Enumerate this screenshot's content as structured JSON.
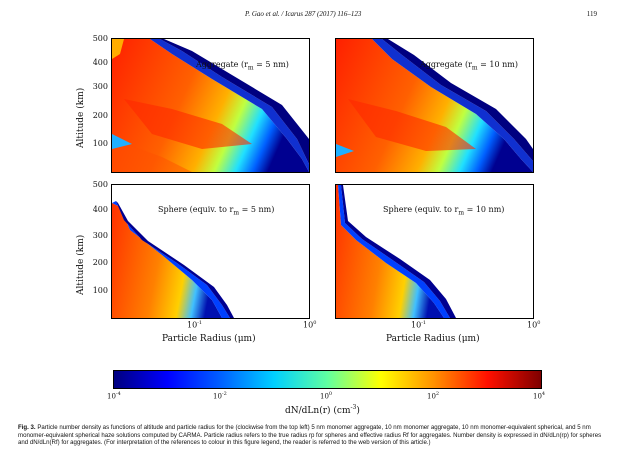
{
  "header": {
    "running_title": "P. Gao et al. / Icarus 287 (2017) 116–123",
    "page_number": "119"
  },
  "panels": [
    {
      "label": "Aggregate (r",
      "label_sub": "m",
      "label_tail": " = 5 nm)"
    },
    {
      "label": "Aggregate (r",
      "label_sub": "m",
      "label_tail": " = 10 nm)"
    },
    {
      "label": "Sphere (equiv. to r",
      "label_sub": "m",
      "label_tail": " = 5 nm)"
    },
    {
      "label": "Sphere (equiv. to r",
      "label_sub": "m",
      "label_tail": " = 10 nm)"
    }
  ],
  "axes": {
    "ylabel": "Altitude (km)",
    "xlabel": "Particle Radius (μm)",
    "yticks": [
      "500",
      "400",
      "300",
      "200",
      "100"
    ],
    "xticks": [
      {
        "base": "10",
        "exp": "-1"
      },
      {
        "base": "10",
        "exp": "0"
      }
    ]
  },
  "colorbar": {
    "label": "dN/dLn(r) (cm",
    "label_exp": "-3",
    "label_tail": ")",
    "ticks": [
      {
        "base": "10",
        "exp": "-4"
      },
      {
        "base": "10",
        "exp": "-2"
      },
      {
        "base": "10",
        "exp": "0"
      },
      {
        "base": "10",
        "exp": "2"
      },
      {
        "base": "10",
        "exp": "4"
      }
    ],
    "colors": [
      "#00007f",
      "#0000ff",
      "#0080ff",
      "#00ffff",
      "#80ff80",
      "#ffff00",
      "#ff8000",
      "#ff0000",
      "#7f0000"
    ]
  },
  "caption": {
    "fig": "Fig. 3.",
    "text": "Particle number density as functions of altitude and particle radius for the (clockwise from the top left) 5 nm monomer aggregate, 10 nm monomer aggregate, 10 nm monomer-equivalent spherical, and 5 nm monomer-equivalent spherical haze solutions computed by CARMA. Particle radius refers to the true radius rp for spheres and effective radius Rf for aggregates. Number density is expressed in dN/dLn(rp) for spheres and dN/dLn(Rf) for aggregates. (For interpretation of the references to colour in this figure legend, the reader is referred to the web version of this article.)"
  }
}
